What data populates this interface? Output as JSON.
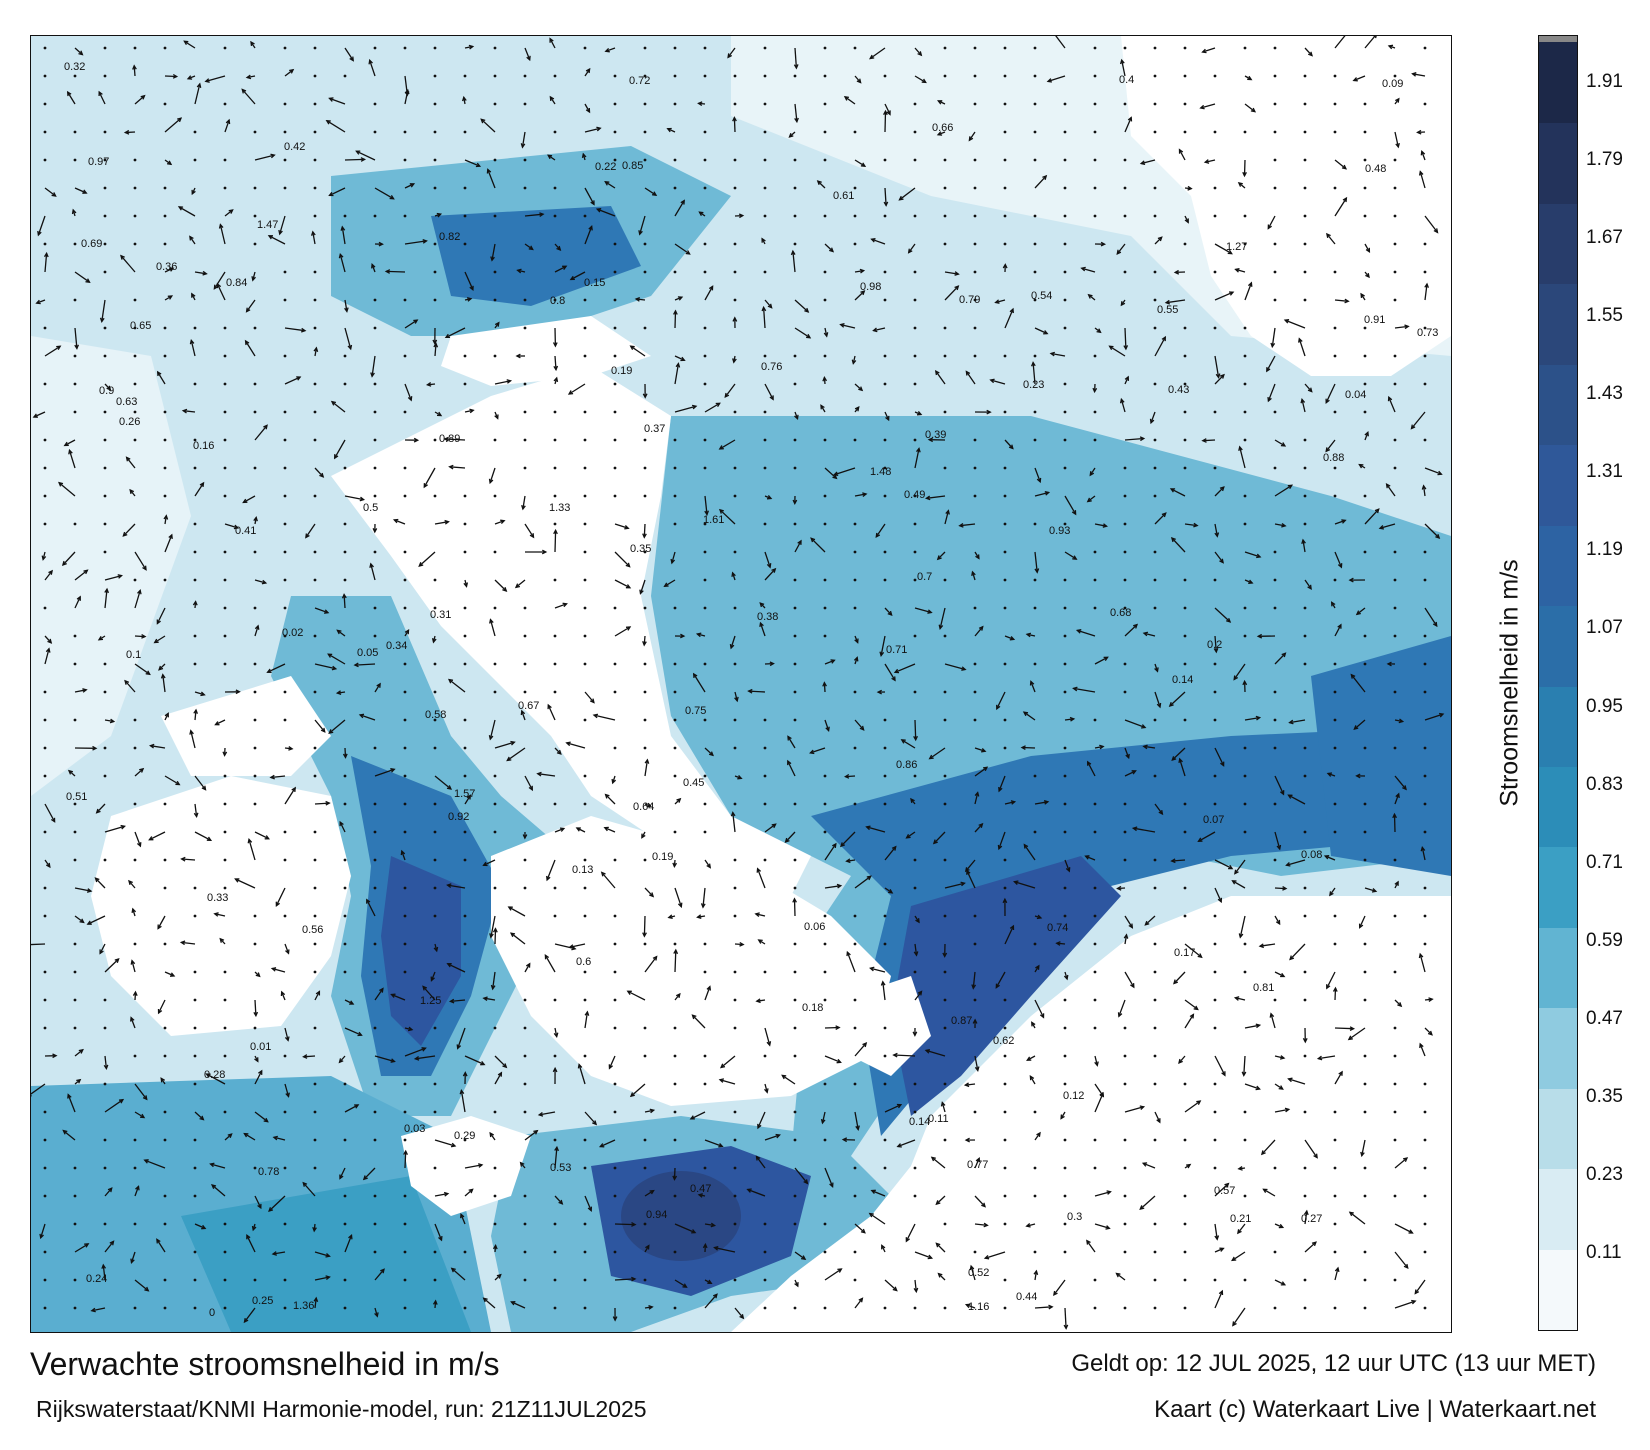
{
  "header": {
    "title": "Verwachte stroomsnelheid in m/s",
    "subtitle": "Rijkswaterstaat/KNMI Harmonie-model, run: 21Z11JUL2025",
    "valid_time": "Geldt op: 12 JUL 2025, 12 uur UTC (13 uur MET)",
    "credit": "Kaart (c) Waterkaart Live | Waterkaart.net"
  },
  "legend": {
    "title": "Stroomsnelheid in m/s",
    "ticks": [
      "1.91",
      "1.79",
      "1.67",
      "1.55",
      "1.43",
      "1.31",
      "1.19",
      "1.07",
      "0.95",
      "0.83",
      "0.71",
      "0.59",
      "0.47",
      "0.35",
      "0.23",
      "0.11"
    ],
    "colors": [
      "#f4f9fb",
      "#d9ecf3",
      "#b8dde9",
      "#8fcbe0",
      "#61b4d2",
      "#3b9fc4",
      "#2c8db8",
      "#2a7fb0",
      "#2b6ea8",
      "#2d63a3",
      "#2f5899",
      "#2c5189",
      "#2b477a",
      "#283d6b",
      "#23335b",
      "#1c2848"
    ]
  },
  "map": {
    "colors": {
      "land": "#ffffff",
      "low": "#d6ecf3",
      "mid": "#6fbad6",
      "high": "#2f78b5",
      "strong": "#2d56a0",
      "peak": "#2a4784"
    },
    "speed_labels": [
      {
        "t": "0.15"
      },
      {
        "t": "0.19"
      },
      {
        "t": "0.26"
      },
      {
        "t": "0.14"
      },
      {
        "t": "0.27"
      },
      {
        "t": "0.25"
      },
      {
        "t": "0.24"
      },
      {
        "t": "0.23"
      },
      {
        "t": "0.17"
      },
      {
        "t": "0.19"
      },
      {
        "t": "0.28"
      },
      {
        "t": "0.2"
      },
      {
        "t": "0.16"
      },
      {
        "t": "0.14"
      },
      {
        "t": "0.13"
      },
      {
        "t": "0.11"
      },
      {
        "t": "0.08"
      },
      {
        "t": "0.09"
      },
      {
        "t": "0.1"
      },
      {
        "t": "0.21"
      },
      {
        "t": "0.18"
      },
      {
        "t": "0.12"
      },
      {
        "t": "0.38"
      },
      {
        "t": "0.35"
      },
      {
        "t": "0.47"
      },
      {
        "t": "0.33"
      },
      {
        "t": "0.29"
      },
      {
        "t": "0.22"
      },
      {
        "t": "0.31"
      },
      {
        "t": "0.34"
      },
      {
        "t": "0.36"
      },
      {
        "t": "0.32"
      },
      {
        "t": "0.3"
      },
      {
        "t": "0.37"
      },
      {
        "t": "0.44"
      },
      {
        "t": "0.39"
      },
      {
        "t": "0.4"
      },
      {
        "t": "0.41"
      },
      {
        "t": "0.42"
      },
      {
        "t": "0.43"
      },
      {
        "t": "0.45"
      },
      {
        "t": "0.48"
      },
      {
        "t": "0.49"
      },
      {
        "t": "0.5"
      },
      {
        "t": "0.51"
      },
      {
        "t": "0.52"
      },
      {
        "t": "0.53"
      },
      {
        "t": "0.54"
      },
      {
        "t": "0.55"
      },
      {
        "t": "0.56"
      },
      {
        "t": "0.57"
      },
      {
        "t": "0.58"
      },
      {
        "t": "0.6"
      },
      {
        "t": "0.61"
      },
      {
        "t": "0.62"
      },
      {
        "t": "0.63"
      },
      {
        "t": "0.64"
      },
      {
        "t": "0.65"
      },
      {
        "t": "0.66"
      },
      {
        "t": "0.67"
      },
      {
        "t": "0.68"
      },
      {
        "t": "0.69"
      },
      {
        "t": "0.7"
      },
      {
        "t": "0.71"
      },
      {
        "t": "0.72"
      },
      {
        "t": "0.73"
      },
      {
        "t": "0.74"
      },
      {
        "t": "0.75"
      },
      {
        "t": "0.76"
      },
      {
        "t": "0.77"
      },
      {
        "t": "0.78"
      },
      {
        "t": "0.79"
      },
      {
        "t": "0.8"
      },
      {
        "t": "0.81"
      },
      {
        "t": "0.82"
      },
      {
        "t": "0.84"
      },
      {
        "t": "0.85"
      },
      {
        "t": "0.86"
      },
      {
        "t": "0.87"
      },
      {
        "t": "0.88"
      },
      {
        "t": "0.89"
      },
      {
        "t": "0.9"
      },
      {
        "t": "0.91"
      },
      {
        "t": "0.92"
      },
      {
        "t": "0.93"
      },
      {
        "t": "0.94"
      },
      {
        "t": "0.97"
      },
      {
        "t": "0.98"
      },
      {
        "t": "1.16"
      },
      {
        "t": "1.25"
      },
      {
        "t": "1.27"
      },
      {
        "t": "1.33"
      },
      {
        "t": "1.36"
      },
      {
        "t": "1.47"
      },
      {
        "t": "1.48"
      },
      {
        "t": "1.57"
      },
      {
        "t": "1.61"
      },
      {
        "t": "0.07"
      },
      {
        "t": "0.06"
      },
      {
        "t": "0.05"
      },
      {
        "t": "0.04"
      },
      {
        "t": "0.03"
      },
      {
        "t": "0.02"
      },
      {
        "t": "0.01"
      },
      {
        "t": "0"
      }
    ]
  }
}
